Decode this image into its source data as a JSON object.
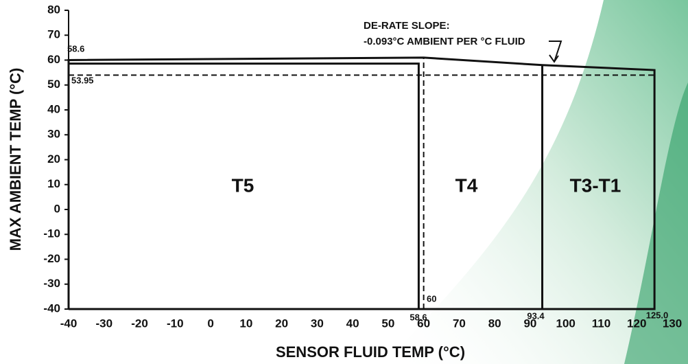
{
  "chart_data": {
    "type": "line",
    "xlabel": "SENSOR FLUID TEMP (°C)",
    "ylabel": "MAX AMBIENT TEMP (°C)",
    "xlim": [
      -40,
      130
    ],
    "ylim": [
      -40,
      80
    ],
    "xticks": [
      -40,
      -30,
      -20,
      -10,
      0,
      10,
      20,
      30,
      40,
      50,
      60,
      70,
      80,
      90,
      100,
      110,
      120,
      130
    ],
    "yticks": [
      -40,
      -30,
      -20,
      -10,
      0,
      10,
      20,
      30,
      40,
      50,
      60,
      70,
      80
    ],
    "series": [
      {
        "color": "#111111",
        "dashed": false,
        "x": [
          -40,
          -40,
          60,
          93.4,
          125,
          125,
          -40
        ],
        "values": [
          -40,
          60,
          61,
          58,
          56,
          -40,
          -40
        ]
      },
      {
        "color": "#111111",
        "dashed": false,
        "x": [
          -40,
          58.6,
          58.6
        ],
        "values": [
          58.6,
          58.6,
          -40
        ]
      },
      {
        "color": "#111111",
        "dashed": false,
        "x": [
          93.4,
          93.4
        ],
        "values": [
          -40,
          58
        ]
      },
      {
        "color": "#111111",
        "dashed": true,
        "x": [
          -40,
          125
        ],
        "values": [
          53.95,
          53.95
        ]
      },
      {
        "color": "#111111",
        "dashed": true,
        "x": [
          60,
          60
        ],
        "values": [
          -40,
          61
        ]
      }
    ],
    "region_labels": [
      "T5",
      "T4",
      "T3-T1"
    ],
    "annotations": [
      "58.6",
      "53.95",
      "58.6",
      "60",
      "93.4",
      "125.0",
      "DE-RATE SLOPE:",
      "-0.093°C AMBIENT PER °C FLUID"
    ]
  }
}
